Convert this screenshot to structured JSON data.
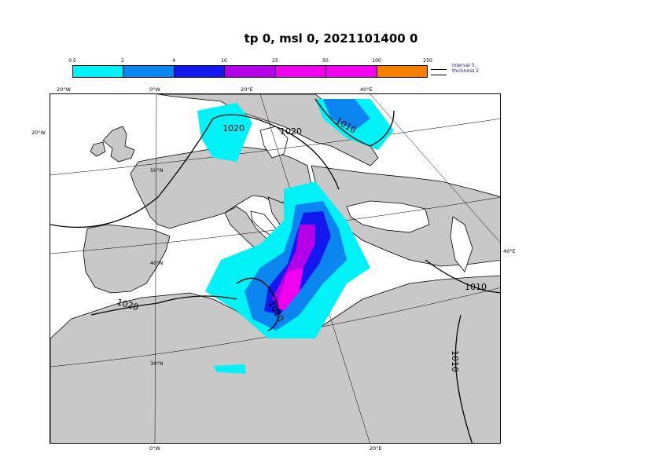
{
  "title": "tp 0, msl 0, 2021101400 0",
  "legend": {
    "ticks": [
      "0.5",
      "2",
      "4",
      "10",
      "25",
      "50",
      "100",
      "250"
    ],
    "colors": [
      "#00f2f6",
      "#0b85f0",
      "#1318ee",
      "#b400e8",
      "#f000ef",
      "#f200f0",
      "#f77f00",
      "#f70d0d"
    ],
    "note": "Interval 5, thickness 2"
  },
  "map": {
    "colors": {
      "land": "#c8c8c8",
      "sea": "#ffffff",
      "border": "#000000"
    },
    "top_labels": [
      "20°W",
      "0°W",
      "20°E",
      "40°E"
    ],
    "left_labels": [
      "20°W",
      "50°N",
      "40°N",
      "30°N"
    ],
    "right_label": "40°E",
    "bottom_labels": [
      "0°W",
      "20°E"
    ],
    "isobars": [
      "1020",
      "1020",
      "1010",
      "1020",
      "1010",
      "1010",
      "1010"
    ]
  }
}
